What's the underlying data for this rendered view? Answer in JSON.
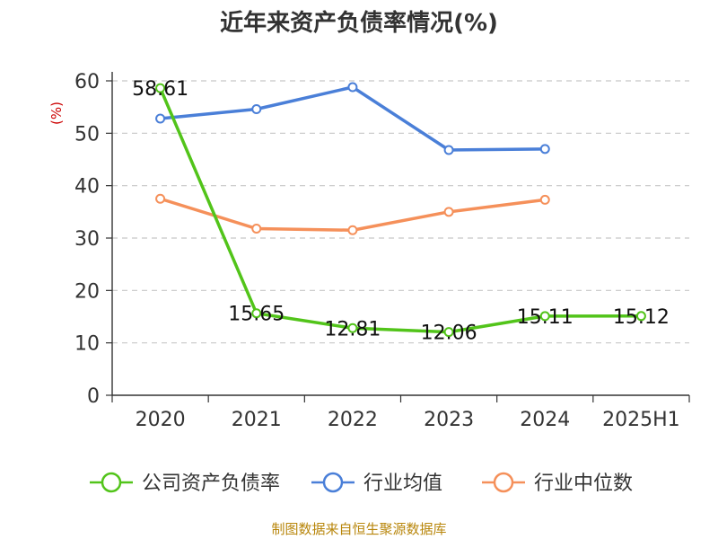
{
  "chart_data": {
    "type": "line",
    "title": "近年来资产负债率情况(%)",
    "ylabel": "(%)",
    "xlabel": "",
    "categories": [
      "2020",
      "2021",
      "2022",
      "2023",
      "2024",
      "2025H1"
    ],
    "ylim": [
      0,
      60
    ],
    "yticks": [
      0,
      10,
      20,
      30,
      40,
      50,
      60
    ],
    "grid": true,
    "legend_position": "bottom",
    "series": [
      {
        "name": "公司资产负债率",
        "color": "#52c41a",
        "values": [
          58.61,
          15.65,
          12.81,
          12.06,
          15.11,
          15.12
        ],
        "labels": [
          "58.61",
          "15.65",
          "12.81",
          "12.06",
          "15.11",
          "15.12"
        ]
      },
      {
        "name": "行业均值",
        "color": "#4a7fd8",
        "values": [
          52.8,
          54.6,
          58.8,
          46.8,
          47.0,
          null
        ]
      },
      {
        "name": "行业中位数",
        "color": "#f5905a",
        "values": [
          37.5,
          31.8,
          31.5,
          35.0,
          37.3,
          null
        ]
      }
    ]
  },
  "footer": {
    "source": "制图数据来自恒生聚源数据库"
  }
}
